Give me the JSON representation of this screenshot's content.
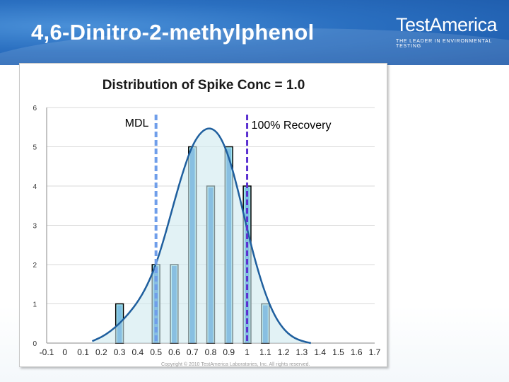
{
  "slide": {
    "title": "4,6-Dinitro-2-methylphenol",
    "logo_main": "TestAmerica",
    "logo_tagline": "THE LEADER IN ENVIRONMENTAL TESTING",
    "copyright": "Copyright © 2010 TestAmerica Laboratories, Inc. All rights reserved."
  },
  "colors": {
    "header": "#2a6fc0",
    "bar_fill": "#a8ecf2",
    "bar_stroke": "#000000",
    "inner_bar_fill": "#5b9bd5",
    "curve": "#1f5f9e",
    "curve_fill": "#cfe9ee",
    "mdl_line": "#6f9eea",
    "recovery_line": "#5a2fd0"
  },
  "chart_data": {
    "type": "bar",
    "title": "Distribution of Spike Conc = 1.0",
    "xlabel": "",
    "ylabel": "",
    "xlim": [
      -0.1,
      1.7
    ],
    "ylim": [
      0,
      6
    ],
    "x_ticks": [
      "-0.1",
      "0",
      "0.1",
      "0.2",
      "0.3",
      "0.4",
      "0.5",
      "0.6",
      "0.7",
      "0.8",
      "0.9",
      "1",
      "1.1",
      "1.2",
      "1.3",
      "1.4",
      "1.5",
      "1.6",
      "1.7"
    ],
    "y_ticks": [
      "0",
      "1",
      "2",
      "3",
      "4",
      "5",
      "6"
    ],
    "bars": [
      {
        "x": 0.3,
        "value": 1
      },
      {
        "x": 0.5,
        "value": 2
      },
      {
        "x": 0.6,
        "value": 2
      },
      {
        "x": 0.7,
        "value": 5
      },
      {
        "x": 0.8,
        "value": 4
      },
      {
        "x": 0.9,
        "value": 5
      },
      {
        "x": 1.0,
        "value": 4
      },
      {
        "x": 1.1,
        "value": 1
      }
    ],
    "curve": {
      "x": [
        0.15,
        0.2,
        0.25,
        0.3,
        0.35,
        0.4,
        0.45,
        0.5,
        0.55,
        0.6,
        0.65,
        0.7,
        0.75,
        0.8,
        0.85,
        0.9,
        0.95,
        1.0,
        1.05,
        1.1,
        1.15,
        1.2,
        1.25,
        1.3,
        1.35
      ],
      "y": [
        0.05,
        0.15,
        0.3,
        0.5,
        0.75,
        1.05,
        1.45,
        2.0,
        2.75,
        3.6,
        4.4,
        5.05,
        5.4,
        5.5,
        5.3,
        4.75,
        3.9,
        2.9,
        2.0,
        1.25,
        0.7,
        0.35,
        0.15,
        0.05,
        0.0
      ]
    },
    "annotations": [
      {
        "label": "MDL",
        "x": 0.5
      },
      {
        "label": "100% Recovery",
        "x": 1.0
      }
    ]
  }
}
